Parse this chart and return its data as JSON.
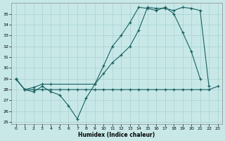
{
  "background_color": "#c8e8e8",
  "grid_color": "#a8d0d0",
  "line_color": "#1a6060",
  "xlabel": "Humidex (Indice chaleur)",
  "xlim": [
    -0.5,
    23.5
  ],
  "ylim": [
    24.8,
    36.0
  ],
  "yticks": [
    25,
    26,
    27,
    28,
    29,
    30,
    31,
    32,
    33,
    34,
    35
  ],
  "xticks": [
    0,
    1,
    2,
    3,
    4,
    5,
    6,
    7,
    8,
    9,
    10,
    11,
    12,
    13,
    14,
    15,
    16,
    17,
    18,
    19,
    20,
    21,
    22,
    23
  ],
  "line1_x": [
    0,
    1,
    2,
    3,
    4,
    5,
    6,
    7,
    8,
    9,
    10,
    11,
    12,
    13,
    14,
    15,
    16,
    17,
    18,
    19,
    20,
    21
  ],
  "line1_y": [
    29.0,
    28.0,
    27.8,
    28.3,
    27.8,
    27.5,
    26.5,
    25.3,
    27.2,
    28.5,
    30.2,
    32.0,
    33.0,
    34.2,
    35.6,
    35.5,
    35.3,
    35.6,
    35.0,
    33.3,
    31.5,
    29.0
  ],
  "line2_x": [
    0,
    1,
    2,
    3,
    4,
    9,
    10,
    11,
    12,
    13,
    14,
    15,
    16,
    17,
    18,
    19,
    20,
    21,
    22
  ],
  "line2_y": [
    29.0,
    28.0,
    28.2,
    28.5,
    28.5,
    28.5,
    29.5,
    30.5,
    31.2,
    32.0,
    33.5,
    35.6,
    35.5,
    35.5,
    35.3,
    35.6,
    35.5,
    35.3,
    28.3
  ],
  "line3_x": [
    0,
    1,
    2,
    3,
    4,
    5,
    6,
    7,
    8,
    9,
    10,
    11,
    12,
    13,
    14,
    15,
    16,
    17,
    18,
    19,
    20,
    21,
    22,
    23
  ],
  "line3_y": [
    29.0,
    28.0,
    28.0,
    28.0,
    28.0,
    28.0,
    28.0,
    28.0,
    28.0,
    28.0,
    28.0,
    28.0,
    28.0,
    28.0,
    28.0,
    28.0,
    28.0,
    28.0,
    28.0,
    28.0,
    28.0,
    28.0,
    28.0,
    28.3
  ]
}
